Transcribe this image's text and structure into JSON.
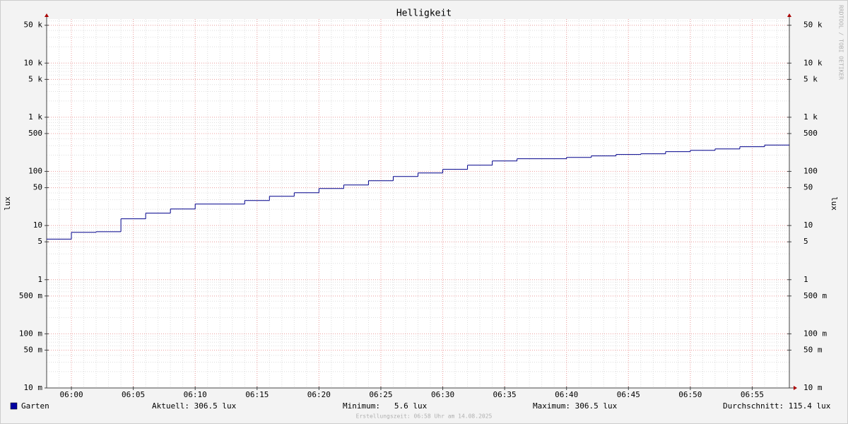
{
  "chart_data": {
    "type": "line",
    "step": true,
    "title": "Helligkeit",
    "ylabel": "lux",
    "log_y": true,
    "grid": true,
    "x": [
      "05:58",
      "06:00",
      "06:02",
      "06:04",
      "06:06",
      "06:08",
      "06:10",
      "06:14",
      "06:16",
      "06:18",
      "06:20",
      "06:22",
      "06:24",
      "06:26",
      "06:28",
      "06:30",
      "06:32",
      "06:34",
      "06:36",
      "06:40",
      "06:42",
      "06:44",
      "06:46",
      "06:48",
      "06:50",
      "06:52",
      "06:54",
      "06:56"
    ],
    "xlim": [
      "05:58",
      "06:58"
    ],
    "xticks": [
      "06:00",
      "06:05",
      "06:10",
      "06:15",
      "06:20",
      "06:25",
      "06:30",
      "06:35",
      "06:40",
      "06:45",
      "06:50",
      "06:55"
    ],
    "ylim": [
      0.01,
      65000
    ],
    "yticks": [
      {
        "value": 0.01,
        "label": "10 m"
      },
      {
        "value": 0.05,
        "label": "50 m"
      },
      {
        "value": 0.1,
        "label": "100 m"
      },
      {
        "value": 0.5,
        "label": "500 m"
      },
      1,
      5,
      10,
      50,
      100,
      500,
      {
        "value": 1000,
        "label": "1 k"
      },
      {
        "value": 5000,
        "label": "5 k"
      },
      {
        "value": 10000,
        "label": "10 k"
      },
      {
        "value": 50000,
        "label": "50 k"
      }
    ],
    "series": [
      {
        "name": "Garten",
        "color": "#00008b",
        "legend_color": "#0000a0",
        "values": [
          5.6,
          7.5,
          7.7,
          13.3,
          16.9,
          20.2,
          24.9,
          29,
          34.7,
          40.3,
          48.3,
          56.1,
          67.3,
          80.5,
          93.6,
          109,
          130,
          156,
          171,
          181,
          193,
          205,
          211,
          231,
          245,
          260,
          285,
          306.5
        ]
      }
    ],
    "stats": [
      "Aktuell: 306.5 lux",
      "Minimum:   5.6 lux",
      "Maximum: 306.5 lux",
      "Durchschnitt: 115.4 lux"
    ],
    "footer": "Erstellungszeit: 06:58 Uhr am 14.08.2025",
    "watermark": "RRDTOOL / TOBI OETIKER"
  }
}
